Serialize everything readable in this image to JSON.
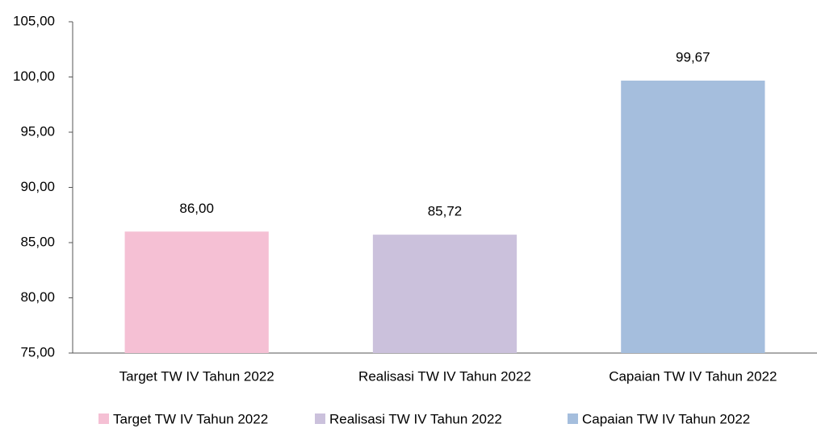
{
  "chart_data": {
    "type": "bar",
    "categories": [
      "Target TW IV Tahun 2022",
      "Realisasi TW IV Tahun 2022",
      "Capaian TW IV Tahun 2022"
    ],
    "values": [
      86.0,
      85.72,
      99.67
    ],
    "value_labels": [
      "86,00",
      "85,72",
      "99,67"
    ],
    "colors": [
      "#f5c0d4",
      "#cbc1dc",
      "#a5bedd"
    ],
    "ylim": [
      75,
      105
    ],
    "yticks": [
      {
        "value": 75,
        "label": "75,00"
      },
      {
        "value": 80,
        "label": "80,00"
      },
      {
        "value": 85,
        "label": "85,00"
      },
      {
        "value": 90,
        "label": "90,00"
      },
      {
        "value": 95,
        "label": "95,00"
      },
      {
        "value": 100,
        "label": "100,00"
      },
      {
        "value": 105,
        "label": "105,00"
      }
    ],
    "grid": false,
    "legend": "bottom"
  }
}
